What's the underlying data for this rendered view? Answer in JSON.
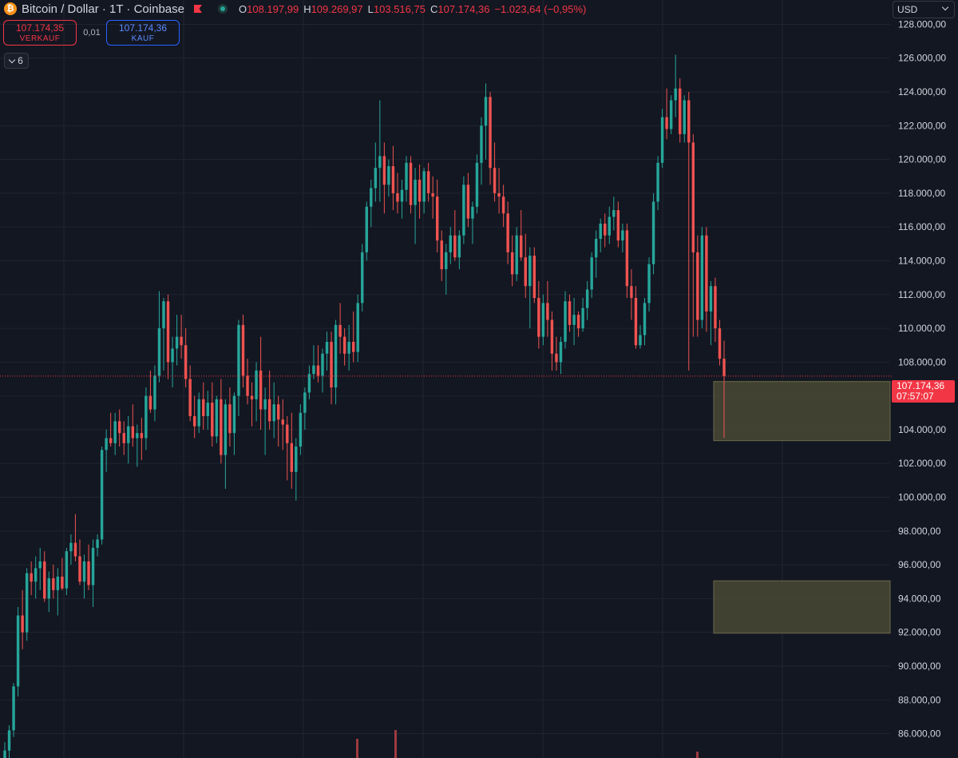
{
  "header": {
    "symbol_title": "Bitcoin / Dollar · 1T · Coinbase",
    "ohlc": {
      "o_label": "O",
      "o": "108.197,99",
      "h_label": "H",
      "h": "109.269,97",
      "l_label": "L",
      "l": "103.516,75",
      "c_label": "C",
      "c": "107.174,36",
      "change": "−1.023,64 (−0,95%)"
    },
    "coin_glyph": "₿",
    "icons": [
      "bitcoin-coin-icon",
      "flag-icon",
      "market-status-icon"
    ]
  },
  "trade": {
    "sell_price": "107.174,35",
    "sell_label": "VERKAUF",
    "spread": "0,01",
    "buy_price": "107.174,36",
    "buy_label": "KAUF"
  },
  "indicators_toggle": {
    "count": "6"
  },
  "currency": "USD",
  "last_price": {
    "price": "107.174,36",
    "countdown": "07:57:07"
  },
  "colors": {
    "up": "#26a69a",
    "down": "#ef5350",
    "background": "#131722",
    "zone": "#4a4935"
  },
  "chart_data": {
    "type": "candlestick",
    "y_ticks": [
      "86.000,00",
      "88.000,00",
      "90.000,00",
      "92.000,00",
      "94.000,00",
      "96.000,00",
      "98.000,00",
      "100.000,00",
      "102.000,00",
      "104.000,00",
      "106.000,00",
      "108.000,00",
      "110.000,00",
      "112.000,00",
      "114.000,00",
      "116.000,00",
      "118.000,00",
      "120.000,00",
      "122.000,00",
      "124.000,00",
      "126.000,00",
      "128.000,00"
    ],
    "ylim": [
      84560,
      129440
    ],
    "grid": true,
    "last_price_value": 107174.36,
    "zones": [
      {
        "y_top": 106850,
        "y_bottom": 103350
      },
      {
        "y_top": 95050,
        "y_bottom": 91950
      }
    ],
    "ohlc_series": [
      [
        84000,
        85500,
        83200,
        85000
      ],
      [
        85000,
        86500,
        84200,
        86200
      ],
      [
        86200,
        89000,
        85800,
        88800
      ],
      [
        88800,
        93500,
        88200,
        93000
      ],
      [
        93000,
        94500,
        91000,
        92000
      ],
      [
        92000,
        95800,
        91500,
        95500
      ],
      [
        95500,
        96200,
        94200,
        95000
      ],
      [
        95000,
        96500,
        94000,
        95800
      ],
      [
        95800,
        97000,
        94500,
        96200
      ],
      [
        96200,
        96800,
        93800,
        94000
      ],
      [
        94000,
        95600,
        93200,
        95200
      ],
      [
        95200,
        96000,
        94000,
        94500
      ],
      [
        94500,
        95800,
        93000,
        95300
      ],
      [
        95300,
        96400,
        94500,
        94600
      ],
      [
        94600,
        97000,
        94200,
        96800
      ],
      [
        96800,
        97800,
        96000,
        97300
      ],
      [
        97300,
        99000,
        96200,
        96500
      ],
      [
        96500,
        97500,
        94800,
        95000
      ],
      [
        95000,
        96600,
        94000,
        96200
      ],
      [
        96200,
        97200,
        94500,
        94800
      ],
      [
        94800,
        97500,
        93500,
        97000
      ],
      [
        97000,
        97800,
        96500,
        97500
      ],
      [
        97500,
        103000,
        97200,
        102800
      ],
      [
        102800,
        104000,
        101500,
        103500
      ],
      [
        103500,
        105000,
        103000,
        103200
      ],
      [
        103200,
        105000,
        102500,
        104500
      ],
      [
        104500,
        105200,
        103000,
        103800
      ],
      [
        103800,
        104500,
        102500,
        103200
      ],
      [
        103200,
        104800,
        102000,
        104200
      ],
      [
        104200,
        105500,
        103000,
        103500
      ],
      [
        103500,
        104300,
        101800,
        103800
      ],
      [
        103800,
        104700,
        102200,
        103500
      ],
      [
        103500,
        106500,
        102800,
        106000
      ],
      [
        106000,
        107500,
        105000,
        105200
      ],
      [
        105200,
        107800,
        104500,
        107200
      ],
      [
        107200,
        112200,
        106800,
        110000
      ],
      [
        110000,
        111800,
        107500,
        111600
      ],
      [
        111600,
        112000,
        107000,
        108000
      ],
      [
        108000,
        109500,
        106500,
        108800
      ],
      [
        108800,
        110800,
        107800,
        109500
      ],
      [
        109500,
        110800,
        108200,
        109000
      ],
      [
        109000,
        110000,
        106500,
        107000
      ],
      [
        107000,
        107800,
        104500,
        104800
      ],
      [
        104800,
        106000,
        103500,
        104200
      ],
      [
        104200,
        106200,
        103800,
        105800
      ],
      [
        105800,
        106800,
        104000,
        104800
      ],
      [
        104800,
        106300,
        104000,
        105600
      ],
      [
        105600,
        106800,
        103000,
        103600
      ],
      [
        103600,
        106000,
        103200,
        105800
      ],
      [
        105800,
        107000,
        102000,
        102500
      ],
      [
        102500,
        105800,
        100500,
        105500
      ],
      [
        105500,
        106500,
        103000,
        103800
      ],
      [
        103800,
        106200,
        102500,
        106000
      ],
      [
        106000,
        110500,
        104800,
        110200
      ],
      [
        110200,
        110800,
        106500,
        107200
      ],
      [
        107200,
        108200,
        105500,
        106000
      ],
      [
        106000,
        106800,
        104200,
        105800
      ],
      [
        105800,
        108000,
        104500,
        107500
      ],
      [
        107500,
        109500,
        104000,
        105200
      ],
      [
        105200,
        106500,
        102500,
        105800
      ],
      [
        105800,
        107500,
        104000,
        104500
      ],
      [
        104500,
        106800,
        103500,
        105500
      ],
      [
        105500,
        106000,
        103000,
        104600
      ],
      [
        104600,
        105800,
        102800,
        104300
      ],
      [
        104300,
        104800,
        101000,
        103200
      ],
      [
        103200,
        105000,
        100500,
        101500
      ],
      [
        101500,
        103500,
        99800,
        103000
      ],
      [
        103000,
        105500,
        102500,
        105000
      ],
      [
        105000,
        106500,
        104000,
        106200
      ],
      [
        106200,
        107800,
        105800,
        107300
      ],
      [
        107300,
        109000,
        107000,
        107800
      ],
      [
        107800,
        109000,
        106800,
        107200
      ],
      [
        107200,
        108800,
        106200,
        108500
      ],
      [
        108500,
        109800,
        107500,
        109200
      ],
      [
        109200,
        109800,
        105500,
        106500
      ],
      [
        106500,
        110500,
        105500,
        110200
      ],
      [
        110200,
        111500,
        108500,
        109500
      ],
      [
        109500,
        110000,
        107800,
        108500
      ],
      [
        108500,
        110200,
        107500,
        109200
      ],
      [
        109200,
        111000,
        108000,
        108600
      ],
      [
        108600,
        112000,
        108000,
        111500
      ],
      [
        111500,
        115000,
        111000,
        114500
      ],
      [
        114500,
        117500,
        114000,
        117200
      ],
      [
        117200,
        118800,
        116000,
        118300
      ],
      [
        118300,
        121000,
        117500,
        119500
      ],
      [
        119500,
        123500,
        117500,
        120200
      ],
      [
        120200,
        121000,
        116800,
        118500
      ],
      [
        118500,
        120000,
        117800,
        119600
      ],
      [
        119600,
        120800,
        117000,
        118000
      ],
      [
        118000,
        119200,
        116800,
        117500
      ],
      [
        117500,
        118800,
        116500,
        118200
      ],
      [
        118200,
        120200,
        117500,
        119800
      ],
      [
        119800,
        120200,
        116800,
        117300
      ],
      [
        117300,
        119500,
        115000,
        118800
      ],
      [
        118800,
        119700,
        116500,
        117500
      ],
      [
        117500,
        119500,
        116800,
        119300
      ],
      [
        119300,
        119800,
        117500,
        118000
      ],
      [
        118000,
        119000,
        116500,
        117800
      ],
      [
        117800,
        118800,
        114500,
        115200
      ],
      [
        115200,
        115800,
        112800,
        113500
      ],
      [
        113500,
        115000,
        112000,
        114500
      ],
      [
        114500,
        116000,
        113800,
        115500
      ],
      [
        115500,
        117000,
        114000,
        114200
      ],
      [
        114200,
        115800,
        113500,
        115500
      ],
      [
        115500,
        119000,
        115000,
        118500
      ],
      [
        118500,
        119200,
        116000,
        116500
      ],
      [
        116500,
        117500,
        115000,
        117200
      ],
      [
        117200,
        120300,
        116800,
        119800
      ],
      [
        119800,
        122500,
        118500,
        122000
      ],
      [
        122000,
        124500,
        120000,
        123700
      ],
      [
        123700,
        124000,
        118500,
        119500
      ],
      [
        119500,
        121000,
        117500,
        118000
      ],
      [
        118000,
        119500,
        116800,
        117800
      ],
      [
        117800,
        118500,
        116000,
        116800
      ],
      [
        116800,
        117500,
        113800,
        114500
      ],
      [
        114500,
        115500,
        112500,
        113200
      ],
      [
        113200,
        116000,
        112800,
        115500
      ],
      [
        115500,
        117000,
        114000,
        114200
      ],
      [
        114200,
        115600,
        111800,
        112500
      ],
      [
        112500,
        114800,
        110000,
        114300
      ],
      [
        114300,
        114800,
        111500,
        111800
      ],
      [
        111800,
        112800,
        108800,
        109500
      ],
      [
        109500,
        112000,
        109000,
        111500
      ],
      [
        111500,
        112800,
        109500,
        110500
      ],
      [
        110500,
        111000,
        107500,
        108500
      ],
      [
        108500,
        109500,
        107500,
        108000
      ],
      [
        108000,
        109500,
        107300,
        109200
      ],
      [
        109200,
        112200,
        108800,
        111600
      ],
      [
        111600,
        112000,
        109800,
        110200
      ],
      [
        110200,
        111800,
        109000,
        110800
      ],
      [
        110800,
        111000,
        109500,
        110000
      ],
      [
        110000,
        111800,
        109800,
        111200
      ],
      [
        111200,
        112800,
        110500,
        112300
      ],
      [
        112300,
        114500,
        111800,
        114200
      ],
      [
        114200,
        115800,
        113000,
        115300
      ],
      [
        115300,
        116500,
        114500,
        116200
      ],
      [
        116200,
        116800,
        114800,
        115500
      ],
      [
        115500,
        117200,
        115000,
        116600
      ],
      [
        116600,
        117800,
        115800,
        117000
      ],
      [
        117000,
        117500,
        114800,
        115200
      ],
      [
        115200,
        116200,
        114500,
        115800
      ],
      [
        115800,
        116200,
        111800,
        112500
      ],
      [
        112500,
        113500,
        110500,
        111800
      ],
      [
        111800,
        112500,
        108800,
        109000
      ],
      [
        109000,
        110200,
        108800,
        109600
      ],
      [
        109600,
        111800,
        109000,
        111500
      ],
      [
        111500,
        114200,
        111000,
        113800
      ],
      [
        113800,
        118000,
        113200,
        117500
      ],
      [
        117500,
        120200,
        117000,
        119800
      ],
      [
        119800,
        123000,
        119500,
        122500
      ],
      [
        122500,
        124200,
        121200,
        121800
      ],
      [
        121800,
        123800,
        121500,
        123500
      ],
      [
        123500,
        126200,
        122500,
        124200
      ],
      [
        124200,
        124800,
        121000,
        121500
      ],
      [
        121500,
        123800,
        121000,
        123500
      ],
      [
        123500,
        124000,
        107500,
        121000
      ],
      [
        121000,
        121500,
        109500,
        114500
      ],
      [
        114500,
        115500,
        109500,
        110500
      ],
      [
        110500,
        116000,
        110000,
        115500
      ],
      [
        115500,
        116000,
        109800,
        111000
      ],
      [
        111000,
        112800,
        109000,
        112500
      ],
      [
        112500,
        113000,
        109200,
        110000
      ],
      [
        110000,
        110500,
        107800,
        108200
      ],
      [
        108200,
        109270,
        103517,
        107174
      ]
    ]
  }
}
